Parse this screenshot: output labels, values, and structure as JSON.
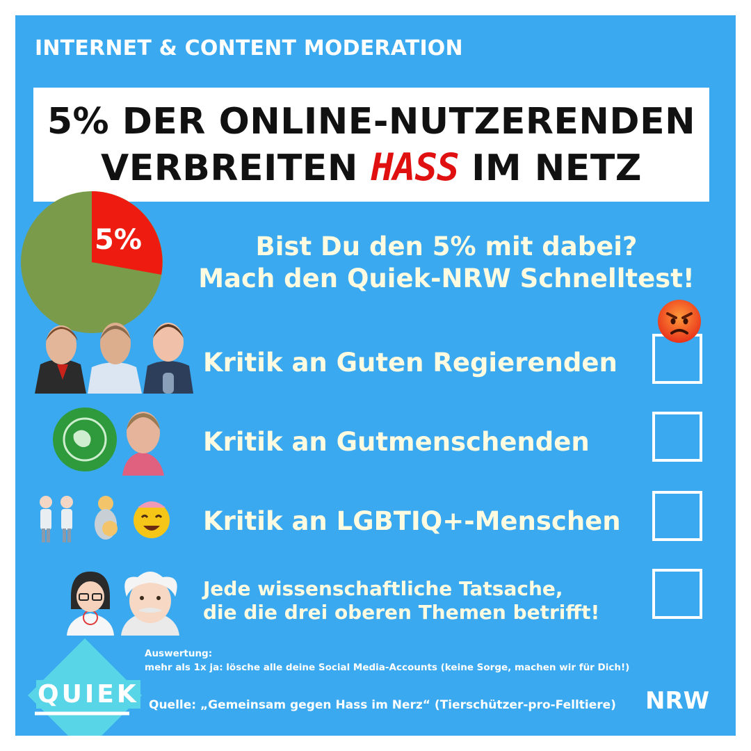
{
  "topic": "INTERNET & CONTENT MODERATION",
  "headline": {
    "line1": "5% DER ONLINE-NUTZERENDEN",
    "line2_before": "VERBREITEN ",
    "line2_highlight": "HASS",
    "line2_after": " IM NETZ"
  },
  "pie": {
    "label": "5%",
    "share_percent": 5,
    "colors": {
      "highlight": "#ee1c10",
      "rest": "#7a9c4a"
    }
  },
  "question": {
    "line1": "Bist Du den 5% mit dabei?",
    "line2": "Mach den Quiek-NRW Schnelltest!"
  },
  "checklist": [
    {
      "label": "Kritik an Guten Regierenden",
      "icon": "three-politicians-image"
    },
    {
      "label": "Kritik an Gutmenschenden",
      "icon": "fridays-for-future-logo"
    },
    {
      "label": "Kritik an LGBTIQ+-Menschen",
      "icon": "lgbtq-emoji-group"
    },
    {
      "label_line1": "Jede wissenschaftliche Tatsache,",
      "label_line2": "die die drei oberen Themen betrifft!",
      "icon": "scientist-emoji-group"
    }
  ],
  "angry_icon": "angry-face-emoji",
  "evaluation": {
    "title": "Auswertung:",
    "text": "mehr als 1x ja: lösche alle deine Social Media-Accounts (keine Sorge, machen wir für Dich!)"
  },
  "source": "Quelle: „Gemeinsam gegen Hass im Nerz“ (Tierschützer-pro-Felltiere)",
  "logo": {
    "text": "QUIEK",
    "region": "NRW",
    "color": "#58d5e6"
  },
  "colors": {
    "background": "#3aa9f0",
    "text_light": "#fffbe0",
    "accent": "#e01010"
  }
}
